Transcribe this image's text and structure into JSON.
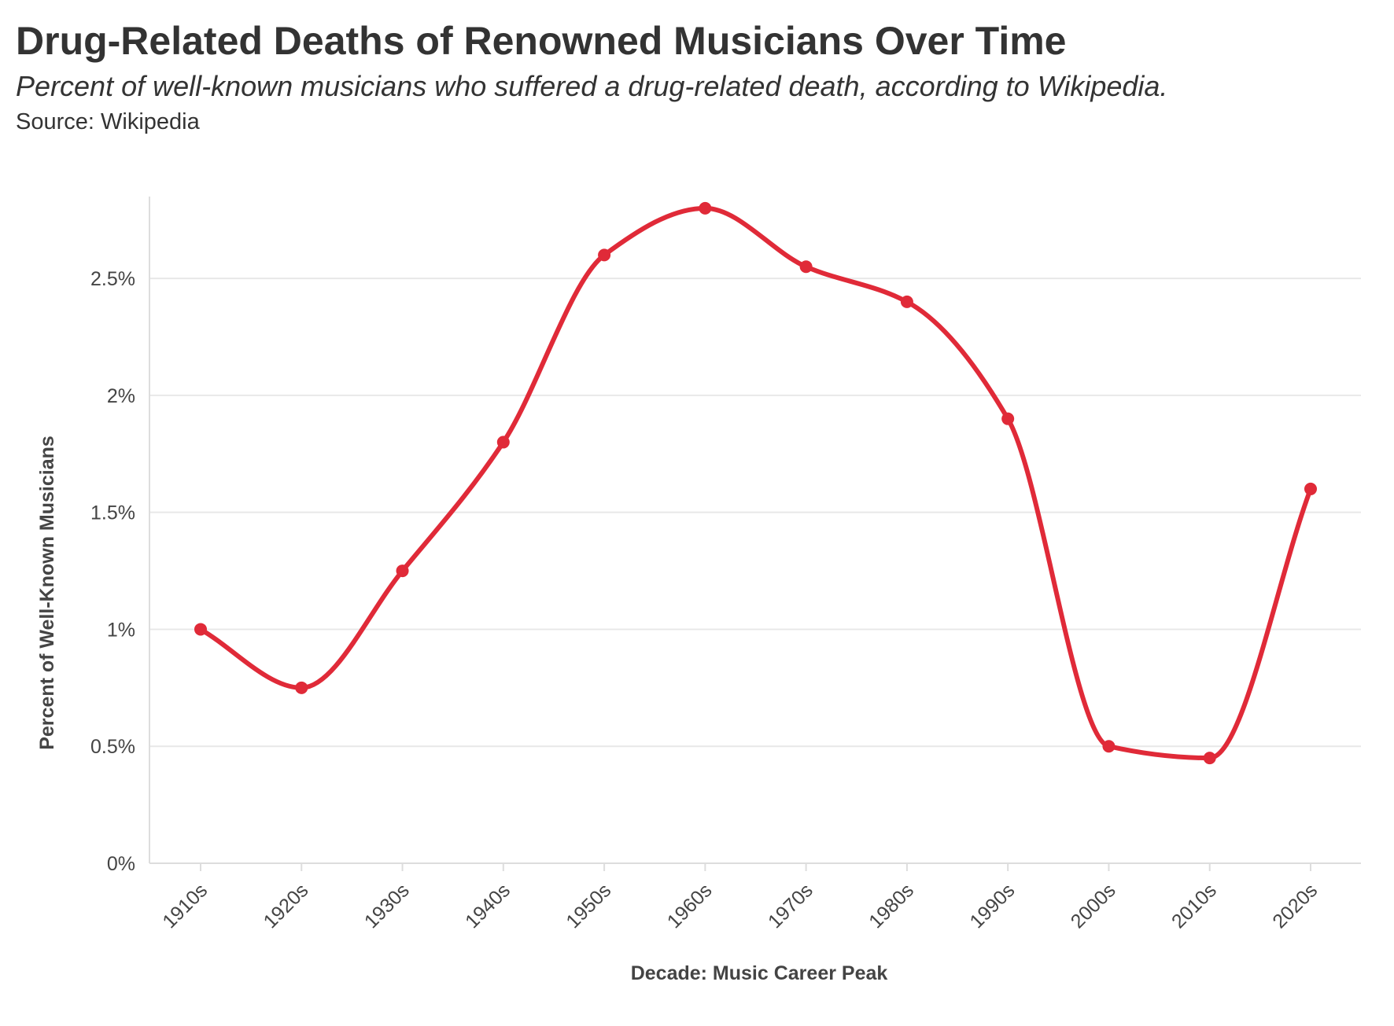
{
  "header": {
    "title": "Drug-Related Deaths of Renowned Musicians Over Time",
    "subtitle": "Percent of well-known musicians who suffered a drug-related death, according to Wikipedia.",
    "source": "Source: Wikipedia"
  },
  "colors": {
    "line": "#e02a38",
    "grid": "#e8e8e8",
    "axis": "#dddddd",
    "text": "#333333"
  },
  "chart_data": {
    "type": "line",
    "title": "Drug-Related Deaths of Renowned Musicians Over Time",
    "subtitle": "Percent of well-known musicians who suffered a drug-related death, according to Wikipedia.",
    "xlabel": "Decade: Music Career Peak",
    "ylabel": "Percent of Well-Known Musicians",
    "categories": [
      "1910s",
      "1920s",
      "1930s",
      "1940s",
      "1950s",
      "1960s",
      "1970s",
      "1980s",
      "1990s",
      "2000s",
      "2010s",
      "2020s"
    ],
    "series": [
      {
        "values": [
          1.0,
          0.75,
          1.25,
          1.8,
          2.6,
          2.8,
          2.55,
          2.4,
          1.9,
          0.5,
          0.45,
          1.6
        ]
      }
    ],
    "yticks": [
      0,
      0.5,
      1,
      1.5,
      2,
      2.5
    ],
    "ytick_labels": [
      "0%",
      "0.5%",
      "1%",
      "1.5%",
      "2%",
      "2.5%"
    ],
    "ylim": [
      0,
      2.85
    ],
    "grid": true,
    "legend": "none",
    "smooth": true
  }
}
